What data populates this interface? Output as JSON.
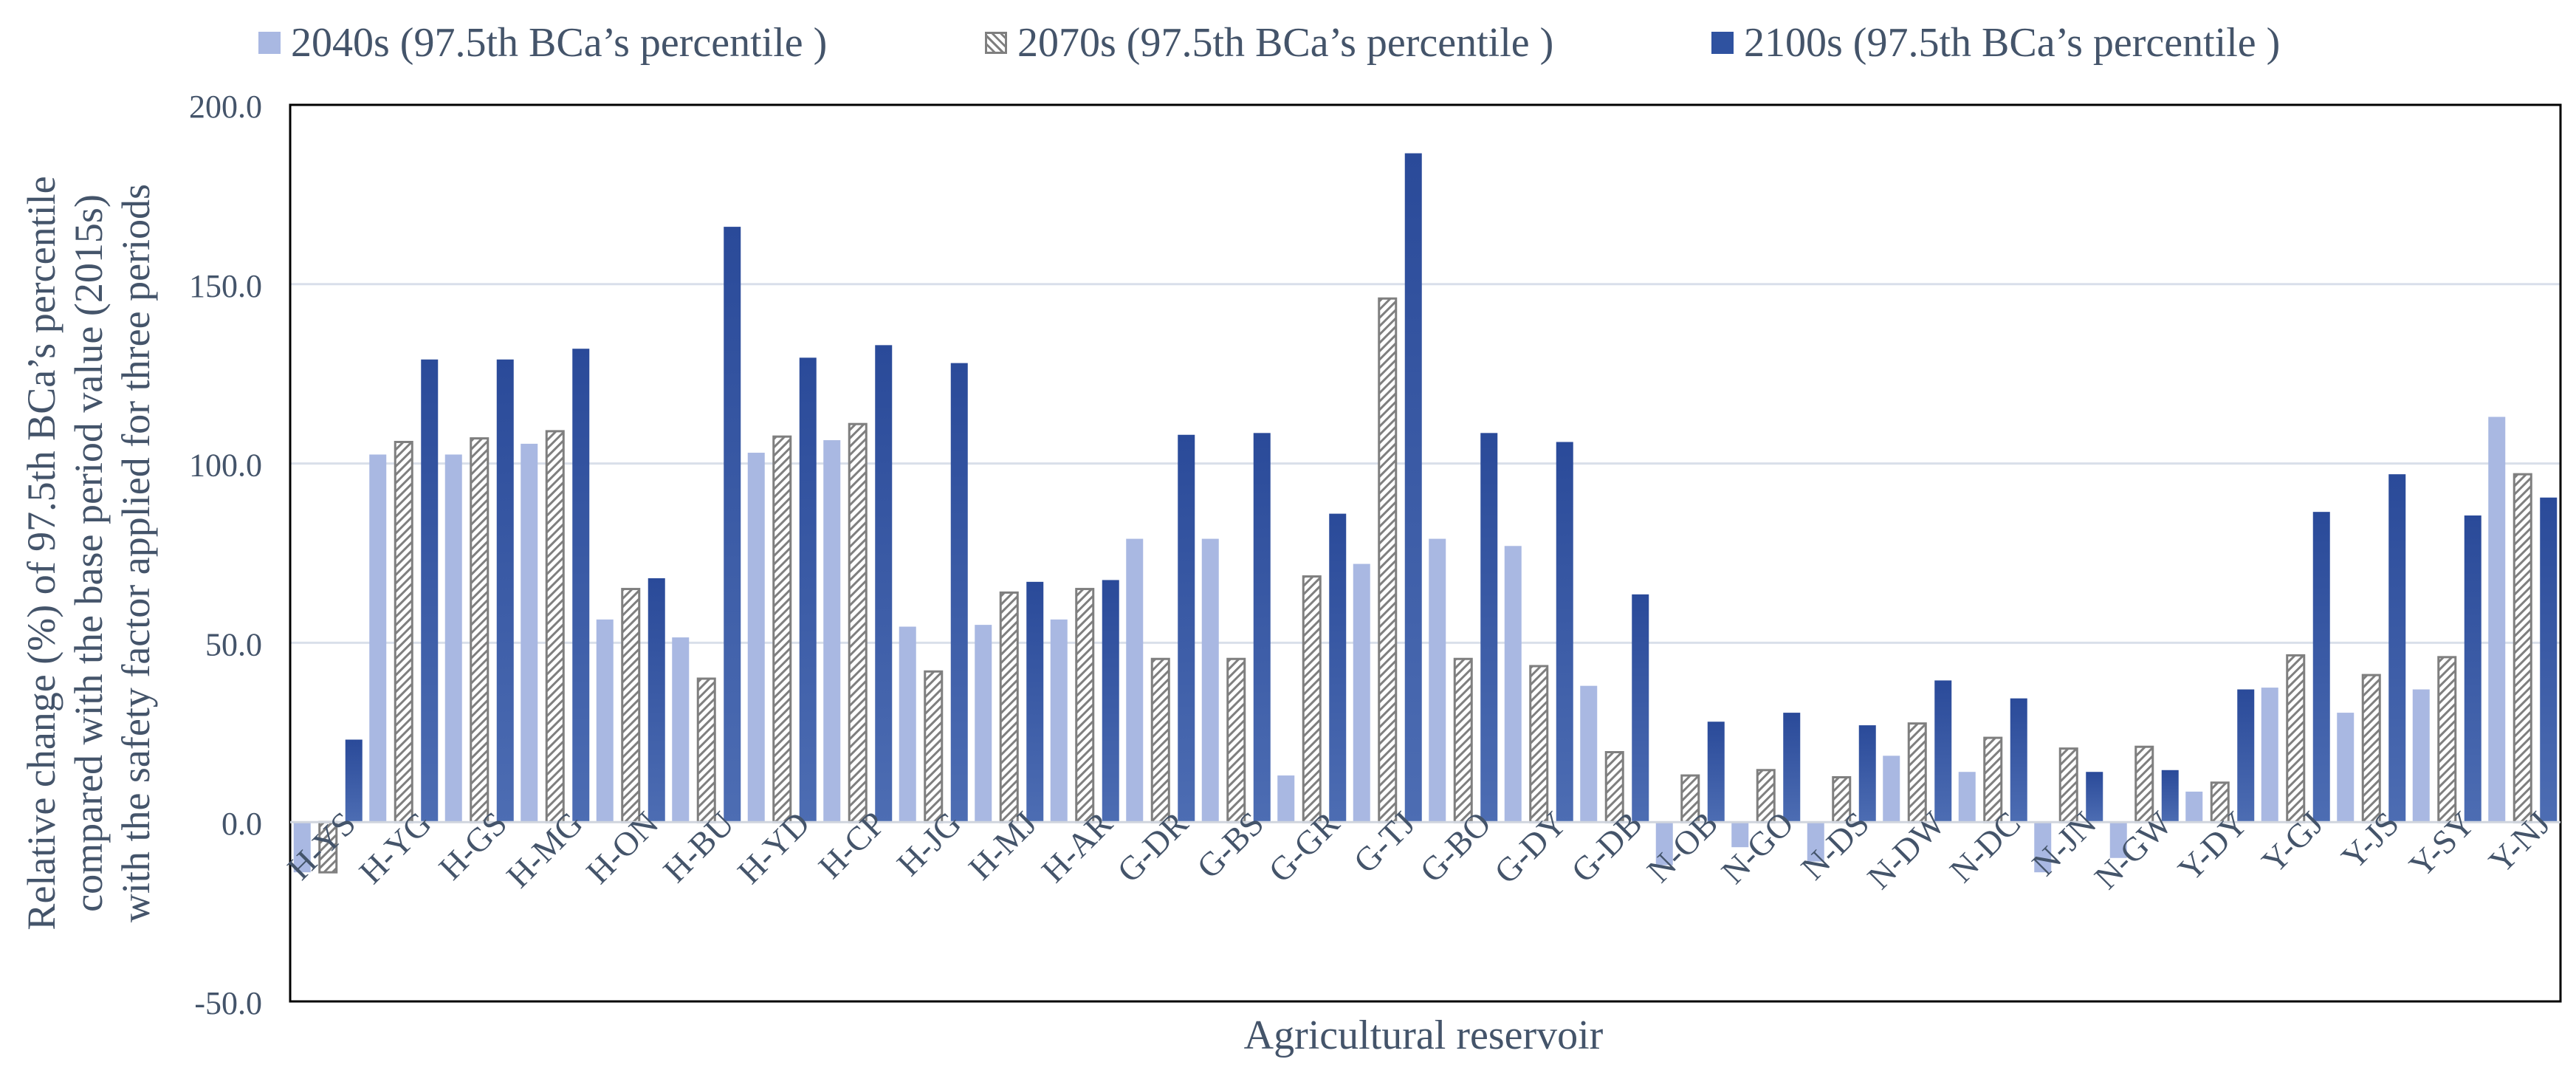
{
  "chart_data": {
    "type": "bar",
    "title": "",
    "xlabel": "Agricultural reservoir",
    "ylabel": "Relative change (%) of 97.5th BCa’s percentile compared with the base period value (2015s) with the safety factor applied for three periods",
    "ylabel_lines": [
      "Relative change (%) of 97.5th BCa’s percentile",
      "compared with the base period value (2015s)",
      "with the safety factor applied for three periods"
    ],
    "ylim": [
      -50,
      200
    ],
    "yticks": [
      "-50.0",
      "0.0",
      "50.0",
      "100.0",
      "150.0",
      "200.0"
    ],
    "ytick_values": [
      -50,
      0,
      50,
      100,
      150,
      200
    ],
    "grid": true,
    "legend_position": "top",
    "categories": [
      "H-YS",
      "H-YG",
      "H-GS",
      "H-MG",
      "H-ON",
      "H-BU",
      "H-YD",
      "H-CP",
      "H-JG",
      "H-MJ",
      "H-AR",
      "G-DR",
      "G-BS",
      "G-GR",
      "G-TJ",
      "G-BO",
      "G-DY",
      "G-DB",
      "N-OB",
      "N-GO",
      "N-DS",
      "N-DW",
      "N-DC",
      "N-JN",
      "N-GW",
      "Y-DY",
      "Y-GJ",
      "Y-JS",
      "Y-SY",
      "Y-NJ"
    ],
    "series": [
      {
        "name": "2040s (97.5th BCa’s percentile )",
        "color": "#a9b8e2",
        "pattern": "solid",
        "values": [
          -14,
          102.5,
          102.5,
          105.5,
          56.5,
          51.5,
          103,
          106.5,
          54.5,
          55,
          56.5,
          79,
          79,
          13,
          72,
          79,
          77,
          38,
          -12,
          -7,
          -11,
          18.5,
          14,
          -14,
          -10,
          8.5,
          37.5,
          30.5,
          37,
          113
        ]
      },
      {
        "name": "2070s (97.5th BCa’s percentile )",
        "color": "#7f7f7f",
        "pattern": "hatch",
        "values": [
          -14,
          106,
          107,
          109,
          65,
          40,
          107.5,
          111,
          42,
          64,
          65,
          45.5,
          45.5,
          68.5,
          146,
          45.5,
          43.5,
          19.5,
          13,
          14.5,
          12.5,
          27.5,
          23.5,
          20.5,
          21,
          11,
          46.5,
          41,
          46,
          97
        ]
      },
      {
        "name": "2100s (97.5th BCa’s percentile )",
        "color": "#2f52a0",
        "pattern": "gradient",
        "values": [
          23,
          129,
          129,
          132,
          68,
          166,
          129.5,
          133,
          128,
          67,
          67.5,
          108,
          108.5,
          86,
          186.5,
          108.5,
          106,
          63.5,
          28,
          30.5,
          27,
          39.5,
          34.5,
          14,
          14.5,
          37,
          86.5,
          97,
          85.5,
          90.5
        ]
      }
    ]
  }
}
